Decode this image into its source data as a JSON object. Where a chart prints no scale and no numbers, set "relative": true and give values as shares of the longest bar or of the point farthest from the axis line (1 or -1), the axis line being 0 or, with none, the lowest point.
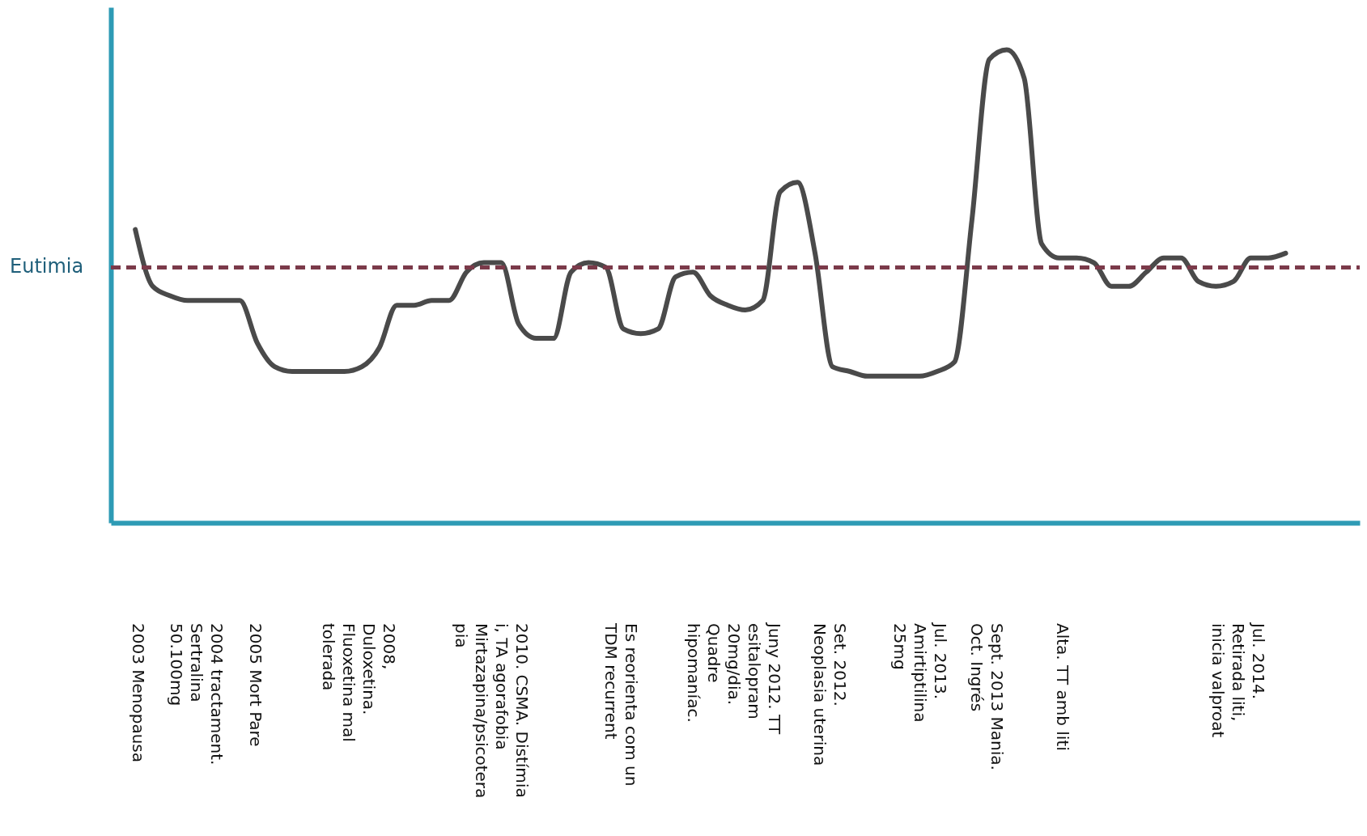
{
  "chart_data": {
    "type": "line",
    "relative": true,
    "categories": [
      null,
      null,
      null,
      null,
      null,
      null,
      null,
      null,
      null,
      null,
      null,
      null,
      null,
      null,
      null,
      null,
      null,
      null,
      null,
      null,
      null,
      null,
      null,
      null,
      null,
      null,
      null,
      null,
      null,
      null,
      null,
      null,
      null,
      null,
      null,
      null,
      null,
      null,
      null,
      null,
      null,
      null,
      null,
      null,
      null,
      null,
      null,
      null,
      null,
      null,
      null,
      null,
      null,
      null,
      null,
      null,
      null,
      null,
      null,
      null,
      null,
      null,
      null,
      null,
      null,
      null,
      null
    ],
    "series": [
      {
        "color": "#4a4a4a",
        "values": [
          0.62,
          0.5,
          0.48,
          0.47,
          0.47,
          0.47,
          0.47,
          0.38,
          0.33,
          0.32,
          0.32,
          0.32,
          0.32,
          0.33,
          0.37,
          0.46,
          0.46,
          0.47,
          0.47,
          0.53,
          0.55,
          0.55,
          0.42,
          0.39,
          0.39,
          0.53,
          0.55,
          0.54,
          0.41,
          0.4,
          0.41,
          0.52,
          0.53,
          0.48,
          0.46,
          0.45,
          0.47,
          0.7,
          0.72,
          0.57,
          0.33,
          0.32,
          0.31,
          0.31,
          0.31,
          0.31,
          0.32,
          0.34,
          0.64,
          0.98,
          1,
          0.94,
          0.59,
          0.56,
          0.56,
          0.55,
          0.5,
          0.5,
          0.53,
          0.56,
          0.56,
          0.51,
          0.5,
          0.51,
          0.56,
          0.56,
          0.57
        ]
      }
    ],
    "line_style": "solid",
    "ref_lines": [
      {
        "axis": "y",
        "value": 0.54,
        "label": "Eutimia",
        "color": "#7b3a4a",
        "line_style": "dashed"
      }
    ],
    "annotations": [
      "2003 Menopausa",
      "2004 tractament.\nSertralina\n50.100mg",
      "2005 Mort Pare",
      "2008,\nDuloxetina.\nFluoxetina mal\ntolerada",
      "2010. CSMA. Distímia\ni, TA agorafobia\nMirtazapina/psicotera\npia",
      "Es reorienta com un\nTDM recurrent",
      "Juny 2012. TT\nesitalopram\n20mg/dia.\nQuadre\nhipomaníac.",
      "Set. 2012.\nNeoplasia uterina",
      "Jul. 2013.\nAmirtiptilina\n25mg",
      "Sept. 2013 Mania.\nOct. Ingrés",
      "Alta. TT amb liti",
      "Jul. 2014.\nRetirada liti,\ninicia valproat"
    ]
  }
}
